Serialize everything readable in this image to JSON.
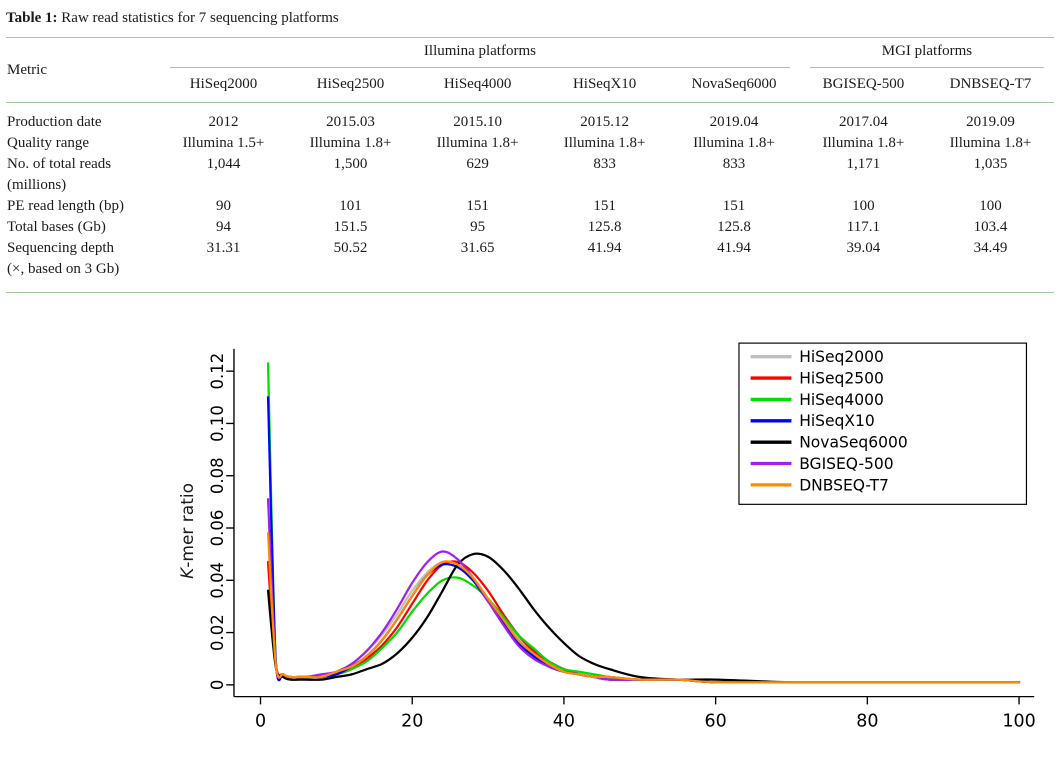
{
  "table": {
    "caption_label": "Table 1:",
    "caption_text": " Raw read statistics for 7 sequencing platforms",
    "rule_color": "#a3c9a3",
    "metric_header": "Metric",
    "groups": [
      {
        "label": "Illumina platforms",
        "span": 5
      },
      {
        "label": "MGI platforms",
        "span": 2
      }
    ],
    "columns": [
      "HiSeq2000",
      "HiSeq2500",
      "HiSeq4000",
      "HiSeqX10",
      "NovaSeq6000",
      "BGISEQ-500",
      "DNBSEQ-T7"
    ],
    "rows": [
      {
        "metric_lines": [
          "Production date"
        ],
        "values": [
          "2012",
          "2015.03",
          "2015.10",
          "2015.12",
          "2019.04",
          "2017.04",
          "2019.09"
        ]
      },
      {
        "metric_lines": [
          "Quality range"
        ],
        "values": [
          "Illumina 1.5+",
          "Illumina 1.8+",
          "Illumina 1.8+",
          "Illumina 1.8+",
          "Illumina 1.8+",
          "Illumina 1.8+",
          "Illumina 1.8+"
        ]
      },
      {
        "metric_lines": [
          "No. of total reads",
          "(millions)"
        ],
        "values": [
          "1,044",
          "1,500",
          "629",
          "833",
          "833",
          "1,171",
          "1,035"
        ]
      },
      {
        "metric_lines": [
          "PE read length (bp)"
        ],
        "values": [
          "90",
          "101",
          "151",
          "151",
          "151",
          "100",
          "100"
        ]
      },
      {
        "metric_lines": [
          "Total bases (Gb)"
        ],
        "values": [
          "94",
          "151.5",
          "95",
          "125.8",
          "125.8",
          "117.1",
          "103.4"
        ]
      },
      {
        "metric_lines": [
          "Sequencing depth",
          "(×, based on 3 Gb)"
        ],
        "values": [
          "31.31",
          "50.52",
          "31.65",
          "41.94",
          "41.94",
          "39.04",
          "34.49"
        ]
      }
    ]
  },
  "chart_data": {
    "type": "line",
    "title": "",
    "xlabel": "",
    "ylabel": "K-mer ratio",
    "ylabel_italic": "K",
    "ylabel_rest": "-mer ratio",
    "xlim": [
      0,
      100
    ],
    "ylim": [
      0,
      0.12
    ],
    "grid": false,
    "legend_position": "top-right",
    "x_ticks": [
      "0",
      "20",
      "40",
      "60",
      "80",
      "100"
    ],
    "y_ticks": [
      "0",
      "0.02",
      "0.04",
      "0.06",
      "0.08",
      "0.10",
      "0.12"
    ],
    "x": [
      1,
      2,
      3,
      4,
      5,
      6,
      8,
      10,
      12,
      14,
      16,
      18,
      20,
      22,
      24,
      26,
      28,
      30,
      32,
      34,
      36,
      38,
      40,
      42,
      44,
      46,
      50,
      55,
      60,
      70,
      80,
      90,
      100
    ],
    "series": [
      {
        "name": "HiSeq2000",
        "color": "#bebebe",
        "values": [
          0.046,
          0.008,
          0.004,
          0.003,
          0.003,
          0.003,
          0.003,
          0.005,
          0.008,
          0.013,
          0.019,
          0.027,
          0.036,
          0.043,
          0.047,
          0.046,
          0.041,
          0.033,
          0.025,
          0.018,
          0.012,
          0.008,
          0.006,
          0.004,
          0.003,
          0.003,
          0.002,
          0.002,
          0.001,
          0.001,
          0.001,
          0.001,
          0.001
        ]
      },
      {
        "name": "HiSeq2500",
        "color": "#ff0000",
        "values": [
          0.047,
          0.008,
          0.004,
          0.003,
          0.003,
          0.003,
          0.003,
          0.004,
          0.006,
          0.01,
          0.015,
          0.022,
          0.031,
          0.04,
          0.046,
          0.047,
          0.043,
          0.036,
          0.027,
          0.019,
          0.013,
          0.009,
          0.006,
          0.004,
          0.003,
          0.003,
          0.002,
          0.002,
          0.001,
          0.001,
          0.001,
          0.001,
          0.001
        ]
      },
      {
        "name": "HiSeq4000",
        "color": "#00dd00",
        "values": [
          0.123,
          0.01,
          0.004,
          0.003,
          0.003,
          0.003,
          0.003,
          0.004,
          0.006,
          0.009,
          0.014,
          0.02,
          0.028,
          0.035,
          0.04,
          0.041,
          0.038,
          0.033,
          0.026,
          0.019,
          0.014,
          0.009,
          0.006,
          0.005,
          0.004,
          0.003,
          0.002,
          0.002,
          0.001,
          0.001,
          0.001,
          0.001,
          0.001
        ]
      },
      {
        "name": "HiSeqX10",
        "color": "#0000ff",
        "values": [
          0.11,
          0.009,
          0.004,
          0.003,
          0.003,
          0.003,
          0.003,
          0.004,
          0.007,
          0.011,
          0.017,
          0.025,
          0.034,
          0.042,
          0.046,
          0.045,
          0.04,
          0.032,
          0.024,
          0.016,
          0.011,
          0.007,
          0.005,
          0.004,
          0.003,
          0.002,
          0.002,
          0.002,
          0.001,
          0.001,
          0.001,
          0.001,
          0.001
        ]
      },
      {
        "name": "NovaSeq6000",
        "color": "#000000",
        "values": [
          0.036,
          0.007,
          0.003,
          0.002,
          0.002,
          0.002,
          0.002,
          0.003,
          0.004,
          0.006,
          0.008,
          0.012,
          0.018,
          0.026,
          0.036,
          0.046,
          0.05,
          0.049,
          0.044,
          0.037,
          0.029,
          0.022,
          0.016,
          0.011,
          0.008,
          0.006,
          0.003,
          0.002,
          0.002,
          0.001,
          0.001,
          0.001,
          0.001
        ]
      },
      {
        "name": "BGISEQ-500",
        "color": "#a020f0",
        "values": [
          0.071,
          0.009,
          0.004,
          0.003,
          0.003,
          0.003,
          0.004,
          0.005,
          0.008,
          0.013,
          0.02,
          0.029,
          0.039,
          0.047,
          0.051,
          0.048,
          0.041,
          0.032,
          0.023,
          0.015,
          0.01,
          0.007,
          0.005,
          0.004,
          0.003,
          0.002,
          0.002,
          0.002,
          0.001,
          0.001,
          0.001,
          0.001,
          0.001
        ]
      },
      {
        "name": "DNBSEQ-T7",
        "color": "#ff8c00",
        "values": [
          0.058,
          0.008,
          0.004,
          0.003,
          0.003,
          0.003,
          0.003,
          0.005,
          0.007,
          0.011,
          0.017,
          0.025,
          0.034,
          0.042,
          0.047,
          0.046,
          0.041,
          0.033,
          0.025,
          0.017,
          0.012,
          0.008,
          0.005,
          0.004,
          0.003,
          0.003,
          0.002,
          0.002,
          0.001,
          0.001,
          0.001,
          0.001,
          0.001
        ]
      }
    ]
  }
}
